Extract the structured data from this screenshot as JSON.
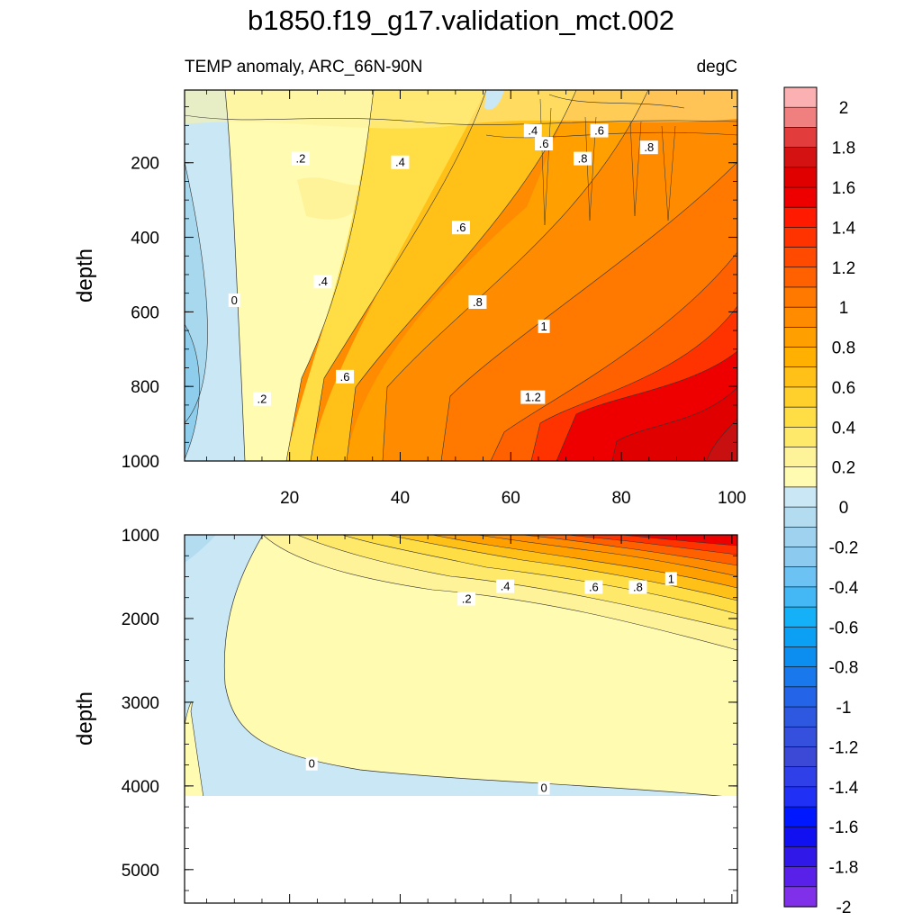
{
  "figure_title": "b1850.f19_g17.validation_mct.002",
  "units": "degC",
  "colorbar": {
    "labels": [
      "2",
      "1.8",
      "1.6",
      "1.4",
      "1.2",
      "1",
      "0.8",
      "0.6",
      "0.4",
      "0.2",
      "0",
      "-0.2",
      "-0.4",
      "-0.6",
      "-0.8",
      "-1",
      "-1.2",
      "-1.4",
      "-1.6",
      "-1.8",
      "-2"
    ],
    "colors": [
      "#fbb1b1",
      "#f07f7f",
      "#e23c3c",
      "#d41212",
      "#e00000",
      "#ee0000",
      "#ff1a00",
      "#ff3300",
      "#ff4a00",
      "#ff6100",
      "#ff7800",
      "#ff8c00",
      "#ffa000",
      "#ffb000",
      "#ffc018",
      "#ffcf2c",
      "#ffdd44",
      "#ffe96a",
      "#fff39a",
      "#fffbb0",
      "#c9e7f5",
      "#b4dcf1",
      "#9fd2ee",
      "#8ccbef",
      "#6cc2f2",
      "#44b8f4",
      "#14b0f8",
      "#0ca0f4",
      "#0c8ef0",
      "#1878ec",
      "#2464e8",
      "#2e58e0",
      "#3450dc",
      "#3c48d6",
      "#3040e8",
      "#2030f4",
      "#0018ff",
      "#1010f0",
      "#3018e8",
      "#5820e8",
      "#8030e8"
    ]
  },
  "chart_data": [
    {
      "type": "contour",
      "subtitle_left": "TEMP anomaly, ARC_66N-90N",
      "subtitle_right": "degC",
      "xlabel": "",
      "ylabel": "depth",
      "xlim": [
        1,
        101
      ],
      "ylim": [
        1000,
        5
      ],
      "xticks": [
        "20",
        "40",
        "60",
        "80",
        "100"
      ],
      "yticks": [
        "200",
        "400",
        "600",
        "800",
        "1000"
      ],
      "contour_interval": 0.1,
      "contour_labels": [
        {
          "text": ".4",
          "x": 64,
          "y": 115
        },
        {
          "text": ".6",
          "x": 76,
          "y": 115
        },
        {
          "text": ".8",
          "x": 85,
          "y": 160
        },
        {
          "text": ".2",
          "x": 22,
          "y": 190
        },
        {
          "text": ".4",
          "x": 40,
          "y": 200
        },
        {
          "text": ".6",
          "x": 66,
          "y": 150
        },
        {
          "text": ".8",
          "x": 73,
          "y": 190
        },
        {
          "text": ".6",
          "x": 51,
          "y": 375
        },
        {
          "text": ".4",
          "x": 26,
          "y": 520
        },
        {
          "text": ".8",
          "x": 54,
          "y": 575
        },
        {
          "text": "0",
          "x": 10,
          "y": 570
        },
        {
          "text": "1",
          "x": 66,
          "y": 640
        },
        {
          "text": ".6",
          "x": 30,
          "y": 775
        },
        {
          "text": ".2",
          "x": 15,
          "y": 835
        },
        {
          "text": "1.2",
          "x": 64,
          "y": 830
        }
      ]
    },
    {
      "type": "contour",
      "xlabel": "",
      "ylabel": "depth",
      "xlim": [
        1,
        101
      ],
      "ylim": [
        5400,
        1000
      ],
      "xticks": [
        "20",
        "40",
        "60",
        "80",
        "100"
      ],
      "yticks": [
        "1000",
        "2000",
        "3000",
        "4000",
        "5000"
      ],
      "bottom_depth": 4120,
      "contour_interval": 0.1,
      "contour_labels": [
        {
          "text": ".2",
          "x": 52,
          "y": 1770
        },
        {
          "text": ".4",
          "x": 59,
          "y": 1620
        },
        {
          "text": ".6",
          "x": 75,
          "y": 1630
        },
        {
          "text": ".8",
          "x": 83,
          "y": 1630
        },
        {
          "text": "1",
          "x": 89,
          "y": 1530
        },
        {
          "text": "0",
          "x": 24,
          "y": 3740
        },
        {
          "text": "0",
          "x": 66,
          "y": 4030
        }
      ]
    }
  ]
}
